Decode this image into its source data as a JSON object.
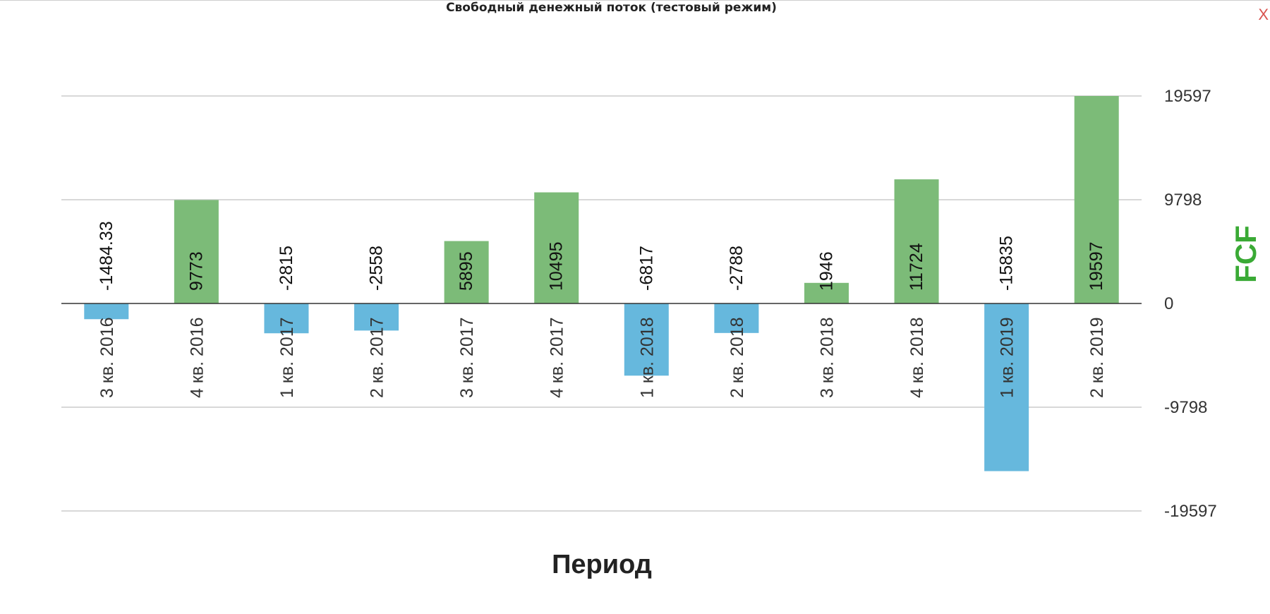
{
  "modal": {
    "title": "Свободный денежный поток (тестовый режим)",
    "close_label": "X"
  },
  "colors": {
    "positive": "#7cbb78",
    "negative": "#66b8dd",
    "ylabel": "#3aaa35",
    "grid": "#cccccc",
    "axis": "#333333",
    "close": "#d9534f"
  },
  "chart_data": {
    "type": "bar",
    "categories": [
      "3 кв. 2016",
      "4 кв. 2016",
      "1 кв. 2017",
      "2 кв. 2017",
      "3 кв. 2017",
      "4 кв. 2017",
      "1 кв. 2018",
      "2 кв. 2018",
      "3 кв. 2018",
      "4 кв. 2018",
      "1 кв. 2019",
      "2 кв. 2019"
    ],
    "values": [
      -1484.33,
      9773,
      -2815,
      -2558,
      5895,
      10495,
      -6817,
      -2788,
      1946,
      11724,
      -15835,
      19597
    ],
    "value_labels": [
      "-1484.33",
      "9773",
      "-2815",
      "-2558",
      "5895",
      "10495",
      "-6817",
      "-2788",
      "1946",
      "11724",
      "-15835",
      "19597"
    ],
    "xlabel": "Период",
    "ylabel": "FCF",
    "yticks": [
      19597,
      9798,
      0,
      -9798,
      -19597
    ],
    "ylim": [
      -19597,
      19597
    ],
    "grid": true,
    "y_axis_position": "right"
  }
}
